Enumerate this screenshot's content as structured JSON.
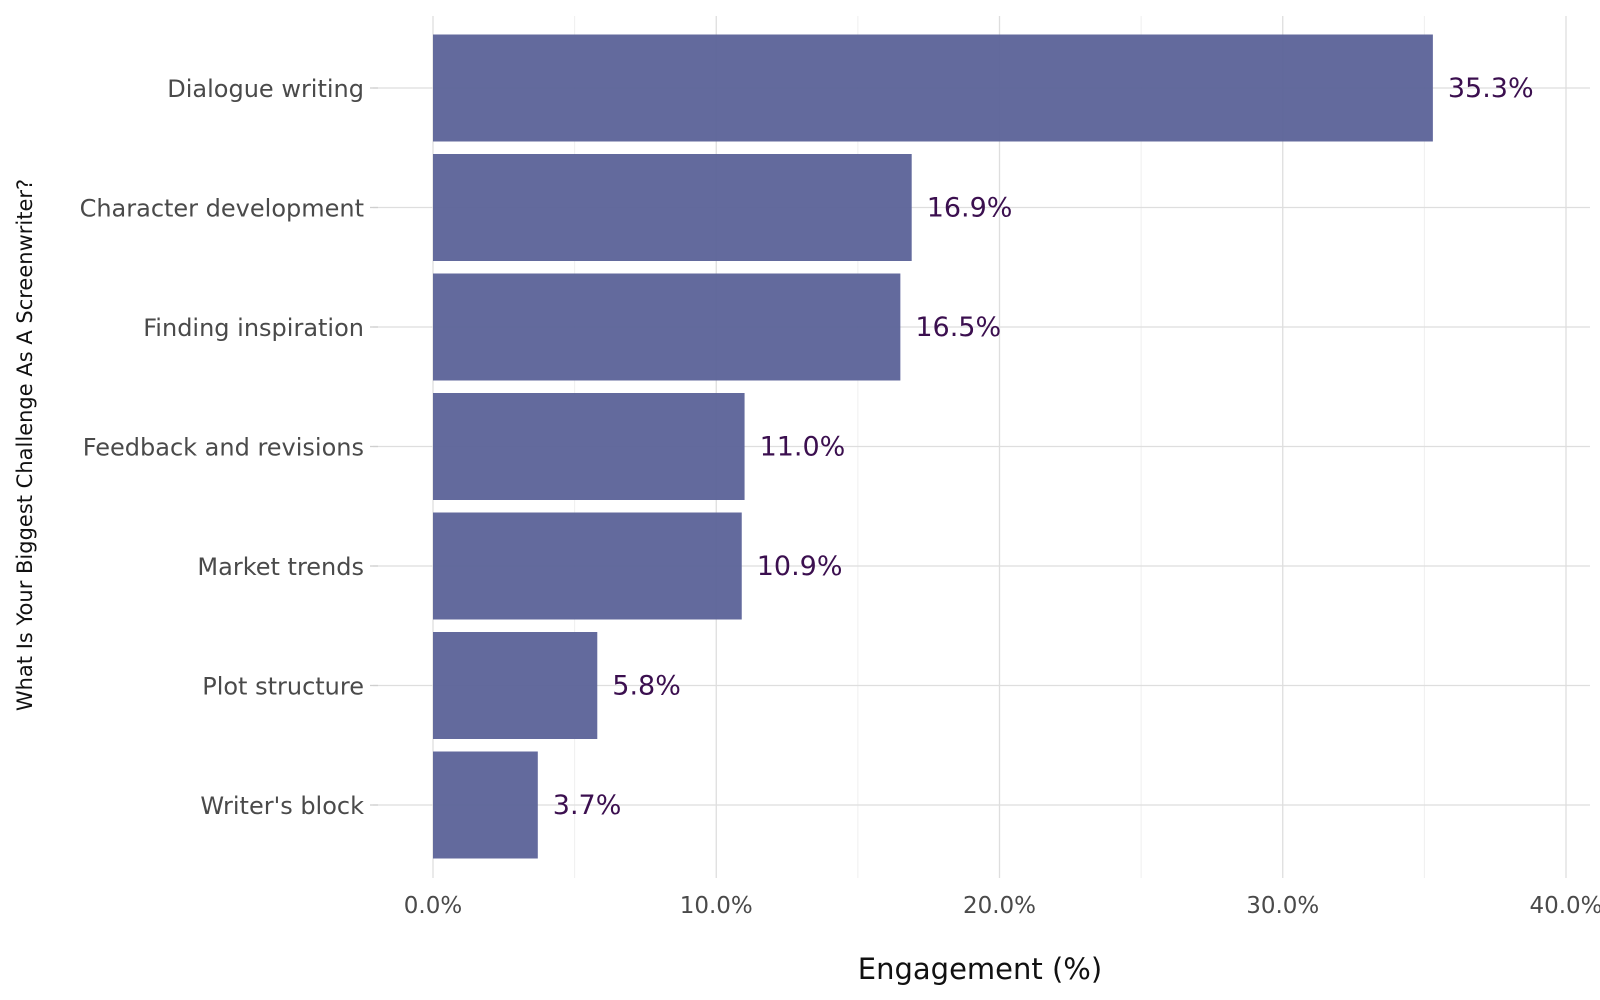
{
  "chart_data": {
    "type": "bar",
    "orientation": "horizontal",
    "title": "",
    "xlabel": "Engagement (%)",
    "ylabel": "What Is Your Biggest Challenge As A Screenwriter?",
    "categories": [
      "Dialogue writing",
      "Character development",
      "Finding inspiration",
      "Feedback and revisions",
      "Market trends",
      "Plot structure",
      "Writer's block"
    ],
    "values": [
      35.3,
      16.9,
      16.5,
      11.0,
      10.9,
      5.8,
      3.7
    ],
    "data_labels": [
      "35.3%",
      "16.9%",
      "16.5%",
      "11.0%",
      "10.9%",
      "5.8%",
      "3.7%"
    ],
    "xlim": [
      0,
      40
    ],
    "x_ticks": [
      0,
      10,
      20,
      30,
      40
    ],
    "x_tick_labels": [
      "0.0%",
      "10.0%",
      "20.0%",
      "30.0%",
      "40.0%"
    ],
    "grid": true,
    "legend": "none",
    "colors": {
      "bar": "#5b6298",
      "data_label": "#3b0f4f",
      "grid": "#dedede"
    }
  }
}
